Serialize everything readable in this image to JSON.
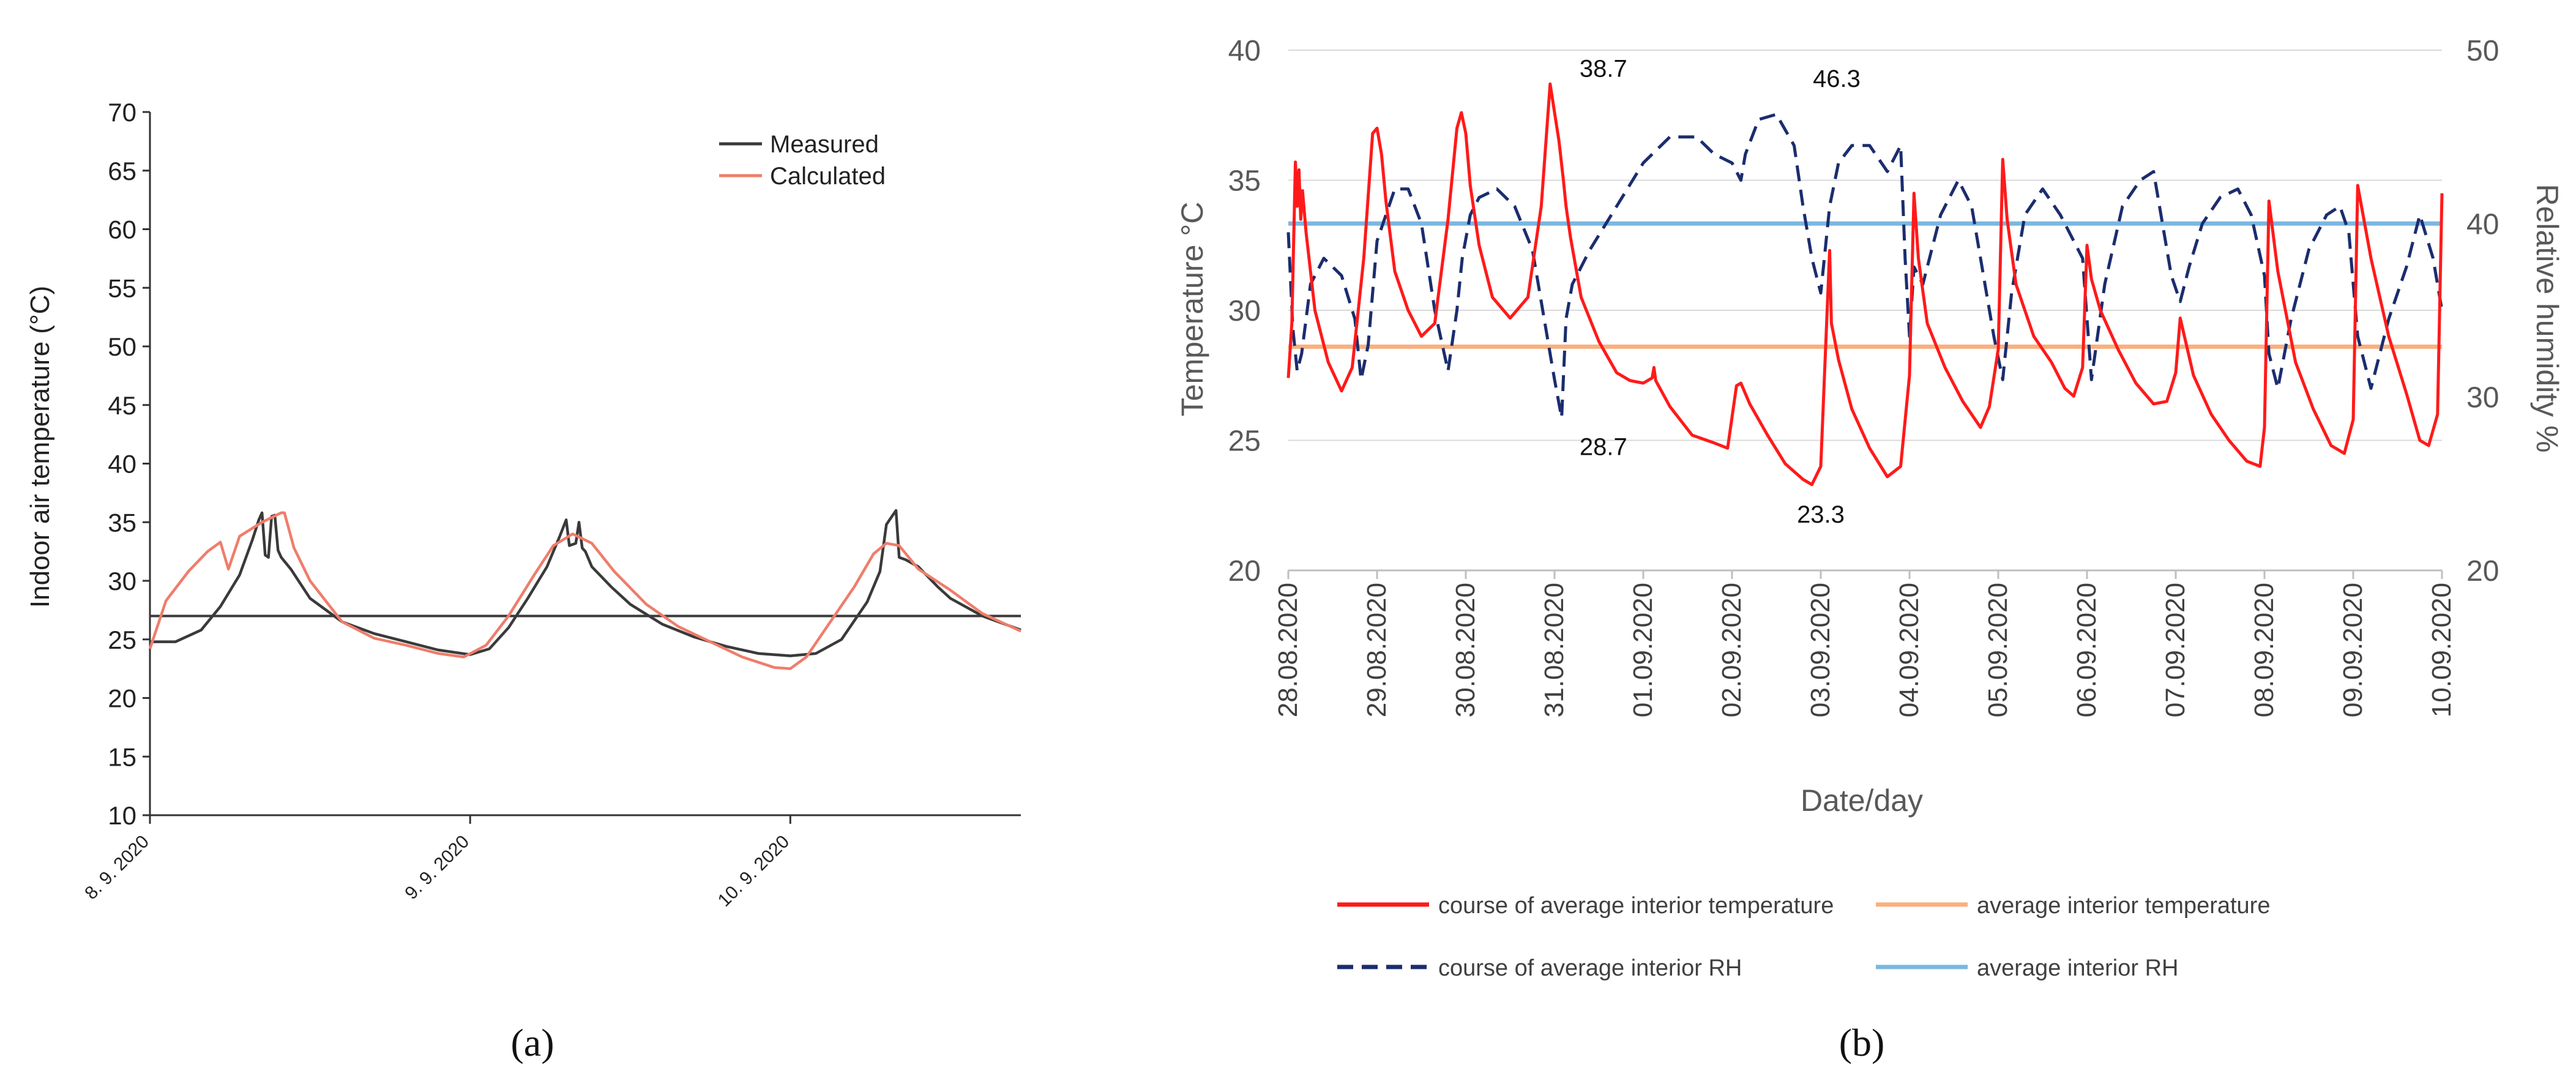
{
  "chart_data": [
    {
      "id": "a",
      "type": "line",
      "panel_label": "(a)",
      "ylabel": "Indoor air temperature (°C)",
      "xlabel": "",
      "ylim": [
        10,
        70
      ],
      "yticks": [
        10,
        15,
        20,
        25,
        30,
        35,
        40,
        45,
        50,
        55,
        60,
        65,
        70
      ],
      "xlim": [
        0,
        2.72
      ],
      "xticks": [
        {
          "x": 0,
          "label": "8. 9. 2020"
        },
        {
          "x": 1,
          "label": "9. 9. 2020"
        },
        {
          "x": 2,
          "label": "10. 9. 2020"
        }
      ],
      "legend_position": "top-right",
      "reference_line": {
        "y": 27,
        "color": "#3a3a3a"
      },
      "series": [
        {
          "name": "Measured",
          "color": "#3a3a3a",
          "x": [
            0,
            0.08,
            0.16,
            0.22,
            0.28,
            0.32,
            0.34,
            0.35,
            0.36,
            0.37,
            0.38,
            0.39,
            0.4,
            0.41,
            0.44,
            0.5,
            0.6,
            0.7,
            0.8,
            0.9,
            1.0,
            1.06,
            1.12,
            1.18,
            1.24,
            1.28,
            1.3,
            1.31,
            1.33,
            1.34,
            1.35,
            1.36,
            1.38,
            1.44,
            1.5,
            1.6,
            1.7,
            1.8,
            1.9,
            2.0,
            2.08,
            2.16,
            2.24,
            2.28,
            2.3,
            2.31,
            2.33,
            2.34,
            2.36,
            2.4,
            2.46,
            2.5,
            2.6,
            2.72
          ],
          "values": [
            24.8,
            24.8,
            25.8,
            27.8,
            30.5,
            33.5,
            35.2,
            35.8,
            32.2,
            32.0,
            35.5,
            35.6,
            32.6,
            32.0,
            31.0,
            28.5,
            26.5,
            25.5,
            24.8,
            24.1,
            23.7,
            24.2,
            26.0,
            28.5,
            31.2,
            33.8,
            35.2,
            33.0,
            33.2,
            35.0,
            32.8,
            32.5,
            31.2,
            29.5,
            28.0,
            26.3,
            25.2,
            24.4,
            23.8,
            23.6,
            23.8,
            25.0,
            28.2,
            30.8,
            34.8,
            35.2,
            36.0,
            32.0,
            31.8,
            31.2,
            29.5,
            28.5,
            27.0,
            25.8
          ]
        },
        {
          "name": "Calculated",
          "color": "#ef7d6b",
          "x": [
            0,
            0.05,
            0.12,
            0.18,
            0.22,
            0.245,
            0.28,
            0.35,
            0.41,
            0.42,
            0.45,
            0.5,
            0.6,
            0.7,
            0.8,
            0.9,
            0.98,
            1.05,
            1.12,
            1.2,
            1.26,
            1.32,
            1.38,
            1.45,
            1.55,
            1.65,
            1.75,
            1.85,
            1.95,
            2.0,
            2.05,
            2.12,
            2.2,
            2.26,
            2.3,
            2.34,
            2.4,
            2.5,
            2.6,
            2.72
          ],
          "values": [
            24.2,
            28.3,
            30.8,
            32.5,
            33.3,
            31.0,
            33.8,
            35.0,
            35.8,
            35.8,
            32.8,
            30.0,
            26.5,
            25.1,
            24.5,
            23.8,
            23.5,
            24.5,
            27.0,
            30.5,
            33.0,
            34.0,
            33.2,
            30.8,
            28.0,
            26.1,
            24.8,
            23.5,
            22.6,
            22.5,
            23.5,
            26.3,
            29.5,
            32.3,
            33.2,
            33.0,
            31.0,
            29.2,
            27.2,
            25.7
          ]
        }
      ]
    },
    {
      "id": "b",
      "type": "line",
      "panel_label": "(b)",
      "xlabel": "Date/day",
      "ylabel": "Temperature °C",
      "y2label": "Relative humidity %",
      "ylim": [
        20,
        40
      ],
      "yticks": [
        20,
        25,
        30,
        35,
        40
      ],
      "y2lim": [
        20,
        50
      ],
      "y2ticks": [
        20,
        30,
        40,
        50
      ],
      "xlim": [
        0,
        13
      ],
      "xticks": [
        "28.08.2020",
        "29.08.2020",
        "30.08.2020",
        "31.08.2020",
        "01.09.2020",
        "02.09.2020",
        "03.09.2020",
        "04.09.2020",
        "05.09.2020",
        "06.09.2020",
        "07.09.2020",
        "08.09.2020",
        "09.09.2020",
        "10.09.2020"
      ],
      "annotations": [
        {
          "text": "38.7",
          "x": 3.13,
          "y": 38.7,
          "axis": "left"
        },
        {
          "text": "28.7",
          "x": 3.13,
          "y": 28.7,
          "axis": "right"
        },
        {
          "text": "46.3",
          "x": 5.8,
          "y": 46.3,
          "axis": "right"
        },
        {
          "text": "23.3",
          "x": 6.0,
          "y": 23.3,
          "axis": "left"
        }
      ],
      "series": [
        {
          "name": "course of average interior temperature",
          "color": "#ff1a1a",
          "axis": "left",
          "style": "solid",
          "x": [
            0.0,
            0.04,
            0.08,
            0.1,
            0.12,
            0.14,
            0.16,
            0.2,
            0.3,
            0.45,
            0.6,
            0.72,
            0.85,
            0.95,
            1.0,
            1.05,
            1.1,
            1.2,
            1.35,
            1.5,
            1.65,
            1.8,
            1.9,
            1.95,
            2.0,
            2.05,
            2.15,
            2.3,
            2.5,
            2.7,
            2.85,
            2.95,
            3.05,
            3.1,
            3.13,
            3.18,
            3.3,
            3.5,
            3.7,
            3.85,
            4.0,
            4.1,
            4.12,
            4.14,
            4.3,
            4.55,
            4.8,
            4.95,
            5.05,
            5.1,
            5.2,
            5.4,
            5.6,
            5.8,
            5.9,
            6.0,
            6.05,
            6.1,
            6.12,
            6.2,
            6.35,
            6.55,
            6.75,
            6.9,
            7.0,
            7.05,
            7.1,
            7.2,
            7.4,
            7.6,
            7.8,
            7.9,
            8.0,
            8.05,
            8.1,
            8.2,
            8.4,
            8.6,
            8.75,
            8.85,
            8.95,
            9.0,
            9.05,
            9.15,
            9.35,
            9.55,
            9.75,
            9.9,
            10.0,
            10.05,
            10.2,
            10.4,
            10.6,
            10.8,
            10.95,
            11.0,
            11.05,
            11.15,
            11.35,
            11.55,
            11.75,
            11.9,
            12.0,
            12.05,
            12.2,
            12.4,
            12.6,
            12.75,
            12.85,
            12.95,
            13.0
          ],
          "values": [
            27.4,
            29.5,
            35.7,
            34.0,
            35.4,
            33.5,
            34.6,
            33.0,
            30.0,
            28.0,
            26.9,
            27.8,
            32.0,
            36.8,
            37.0,
            36.0,
            34.2,
            31.5,
            30.0,
            29.0,
            29.5,
            33.5,
            37.0,
            37.6,
            36.8,
            34.8,
            32.5,
            30.5,
            29.7,
            30.5,
            34.0,
            38.7,
            36.5,
            35.0,
            34.0,
            32.8,
            30.5,
            28.8,
            27.6,
            27.3,
            27.2,
            27.4,
            27.8,
            27.3,
            26.3,
            25.2,
            24.9,
            24.7,
            27.1,
            27.2,
            26.4,
            25.2,
            24.1,
            23.5,
            23.3,
            24.0,
            28.2,
            32.3,
            29.5,
            28.1,
            26.2,
            24.7,
            23.6,
            24.0,
            27.5,
            34.5,
            32.0,
            29.5,
            27.8,
            26.5,
            25.5,
            26.3,
            28.5,
            35.8,
            33.5,
            31.0,
            29.0,
            28.0,
            27.0,
            26.7,
            27.8,
            32.5,
            31.2,
            30.0,
            28.5,
            27.2,
            26.4,
            26.5,
            27.6,
            29.7,
            27.5,
            26.0,
            25.0,
            24.2,
            24.0,
            25.5,
            34.2,
            31.5,
            28.0,
            26.2,
            24.8,
            24.5,
            25.8,
            34.8,
            32.0,
            29.0,
            26.8,
            25.0,
            24.8,
            26.0,
            34.5
          ]
        },
        {
          "name": "average interior temperature",
          "color": "#f9b07f",
          "axis": "left",
          "style": "solid",
          "x": [
            0,
            13
          ],
          "values": [
            28.6,
            28.6
          ]
        },
        {
          "name": "course of average interior RH",
          "color": "#1b2d6e",
          "axis": "right",
          "style": "dashed",
          "x": [
            0.0,
            0.05,
            0.1,
            0.15,
            0.25,
            0.4,
            0.6,
            0.75,
            0.82,
            0.9,
            1.0,
            1.1,
            1.2,
            1.35,
            1.5,
            1.65,
            1.8,
            1.9,
            1.96,
            2.05,
            2.15,
            2.35,
            2.55,
            2.75,
            2.9,
            3.0,
            3.08,
            3.13,
            3.2,
            3.4,
            3.7,
            4.0,
            4.3,
            4.6,
            4.8,
            5.0,
            5.1,
            5.15,
            5.3,
            5.5,
            5.7,
            5.8,
            5.9,
            6.0,
            6.05,
            6.1,
            6.2,
            6.35,
            6.55,
            6.75,
            6.85,
            6.9,
            6.95,
            7.0,
            7.05,
            7.15,
            7.35,
            7.55,
            7.7,
            7.85,
            7.95,
            8.05,
            8.15,
            8.3,
            8.5,
            8.7,
            8.85,
            8.95,
            9.05,
            9.2,
            9.4,
            9.6,
            9.75,
            9.85,
            9.95,
            10.05,
            10.15,
            10.3,
            10.5,
            10.7,
            10.85,
            11.0,
            11.05,
            11.15,
            11.3,
            11.5,
            11.7,
            11.85,
            11.95,
            12.05,
            12.2,
            12.4,
            12.6,
            12.75,
            12.9,
            13.0
          ],
          "values": [
            39.5,
            34.0,
            31.5,
            32.5,
            36.5,
            38.0,
            37.0,
            34.5,
            31.0,
            33.0,
            39.0,
            40.5,
            42.0,
            42.0,
            40.0,
            35.0,
            31.5,
            35.0,
            38.0,
            40.5,
            41.5,
            42.0,
            41.0,
            38.5,
            34.0,
            31.0,
            28.8,
            34.5,
            36.5,
            38.5,
            41.0,
            43.5,
            45.0,
            45.0,
            44.0,
            43.5,
            42.5,
            44.0,
            46.0,
            46.3,
            44.5,
            41.0,
            38.0,
            36.0,
            38.5,
            41.0,
            43.5,
            44.5,
            44.5,
            43.0,
            44.0,
            44.5,
            38.0,
            33.5,
            37.5,
            36.5,
            40.5,
            42.5,
            41.0,
            36.5,
            33.5,
            31.0,
            36.0,
            40.5,
            42.0,
            40.5,
            39.0,
            38.0,
            31.0,
            36.5,
            41.0,
            42.5,
            43.0,
            40.0,
            37.0,
            35.5,
            37.5,
            40.0,
            41.5,
            42.0,
            40.5,
            37.0,
            32.5,
            30.5,
            34.5,
            38.5,
            40.5,
            41.0,
            39.5,
            33.5,
            30.5,
            34.5,
            37.5,
            40.5,
            38.0,
            35.0
          ]
        },
        {
          "name": "average interior RH",
          "color": "#7ab7e0",
          "axis": "right",
          "style": "solid",
          "x": [
            0,
            13
          ],
          "values": [
            40.0,
            40.0
          ]
        }
      ]
    }
  ]
}
